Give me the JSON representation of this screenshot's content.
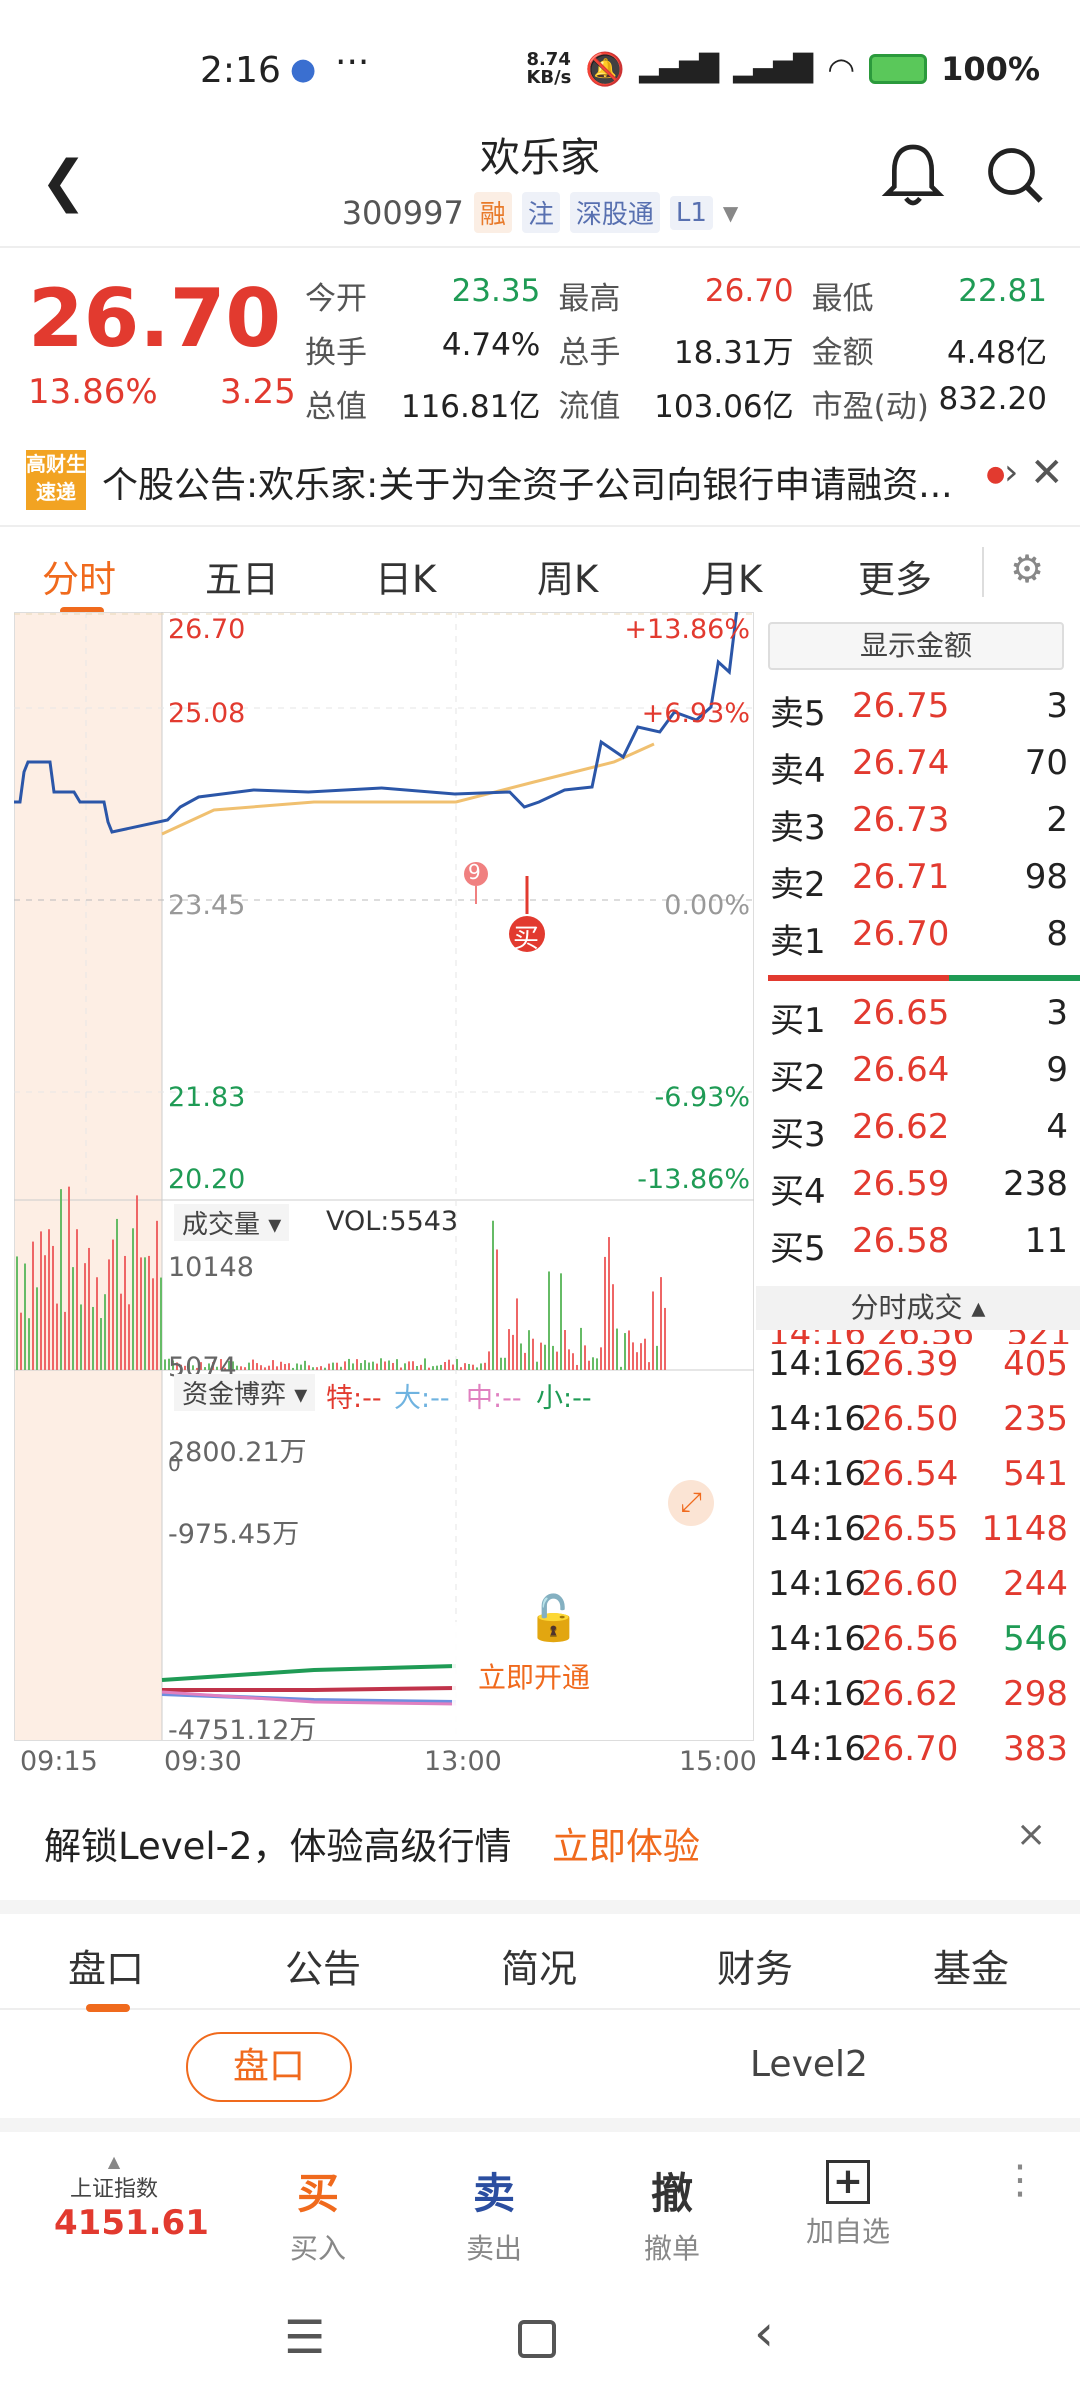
{
  "status": {
    "time": "2:16",
    "net_speed": "8.74\nKB/s",
    "battery": "100%"
  },
  "header": {
    "stock_name": "欢乐家",
    "code": "300997",
    "tags": [
      "融",
      "注",
      "深股通",
      "L1"
    ]
  },
  "quote": {
    "price": "26.70",
    "pct": "13.86%",
    "change": "3.25",
    "rows": [
      [
        [
          "今开",
          "23.35",
          "green"
        ],
        [
          "最高",
          "26.70",
          "red"
        ],
        [
          "最低",
          "22.81",
          "green"
        ]
      ],
      [
        [
          "换手",
          "4.74%",
          ""
        ],
        [
          "总手",
          "18.31万",
          ""
        ],
        [
          "金额",
          "4.48亿",
          ""
        ]
      ],
      [
        [
          "总值",
          "116.81亿",
          ""
        ],
        [
          "流值",
          "103.06亿",
          ""
        ],
        [
          "市盈(动)",
          "832.20",
          ""
        ]
      ]
    ]
  },
  "news": {
    "logo": "高财生\n速递",
    "text": "个股公告:欢乐家:关于为全资子公司向银行申请融资..."
  },
  "tabs": [
    "分时",
    "五日",
    "日K",
    "周K",
    "月K",
    "更多"
  ],
  "chart": {
    "price_labels": {
      "high": "26.70",
      "p1": "25.08",
      "mid": "23.45",
      "p3": "21.83",
      "low": "20.20"
    },
    "pct_labels": {
      "high": "+13.86%",
      "p1": "+6.93%",
      "mid": "0.00%",
      "p3": "-6.93%",
      "low": "-13.86%"
    },
    "vol_selector": "成交量",
    "vol_label": "VOL:5543",
    "vol_ticks": [
      "10148",
      "5074",
      "0"
    ],
    "fund_selector": "资金博弈",
    "fund_legend": [
      "特:--",
      "大:--",
      "中:--",
      "小:--"
    ],
    "fund_ticks": [
      "2800.21万",
      "-975.45万",
      "-4751.12万"
    ],
    "open_cta": "立即开通",
    "time_labels": [
      "09:15",
      "09:30",
      "13:00",
      "15:00"
    ],
    "marker_num": "9",
    "marker_buy": "买"
  },
  "book": {
    "toggle": "显示金额",
    "asks": [
      [
        "卖5",
        "26.75",
        "3"
      ],
      [
        "卖4",
        "26.74",
        "70"
      ],
      [
        "卖3",
        "26.73",
        "2"
      ],
      [
        "卖2",
        "26.71",
        "98"
      ],
      [
        "卖1",
        "26.70",
        "8"
      ]
    ],
    "bids": [
      [
        "买1",
        "26.65",
        "3"
      ],
      [
        "买2",
        "26.64",
        "9"
      ],
      [
        "买3",
        "26.62",
        "4"
      ],
      [
        "买4",
        "26.59",
        "238"
      ],
      [
        "买5",
        "26.58",
        "11"
      ]
    ],
    "trades_header": "分时成交",
    "trades": [
      [
        "14:16",
        "26.39",
        "405",
        "red"
      ],
      [
        "14:16",
        "26.50",
        "235",
        "red"
      ],
      [
        "14:16",
        "26.54",
        "541",
        "red"
      ],
      [
        "14:16",
        "26.55",
        "1148",
        "red"
      ],
      [
        "14:16",
        "26.60",
        "244",
        "red"
      ],
      [
        "14:16",
        "26.56",
        "546",
        "green"
      ],
      [
        "14:16",
        "26.62",
        "298",
        "red"
      ],
      [
        "14:16",
        "26.70",
        "383",
        "red"
      ]
    ]
  },
  "level2": {
    "msg": "解锁Level-2，体验高级行情",
    "cta": "立即体验"
  },
  "lower_tabs": [
    "盘口",
    "公告",
    "简况",
    "财务",
    "基金"
  ],
  "segment": [
    "盘口",
    "Level2"
  ],
  "bottom": {
    "index_name": "上证指数",
    "index_value": "4151.61",
    "actions": [
      [
        "买",
        "买入"
      ],
      [
        "卖",
        "卖出"
      ],
      [
        "撤",
        "撤单"
      ],
      [
        "+",
        "加自选"
      ]
    ]
  },
  "colors": {
    "up": "#e23a2f",
    "down": "#1f9b55",
    "accent": "#f06a1d",
    "line": "#2b56a8",
    "avg": "#f0c070"
  }
}
